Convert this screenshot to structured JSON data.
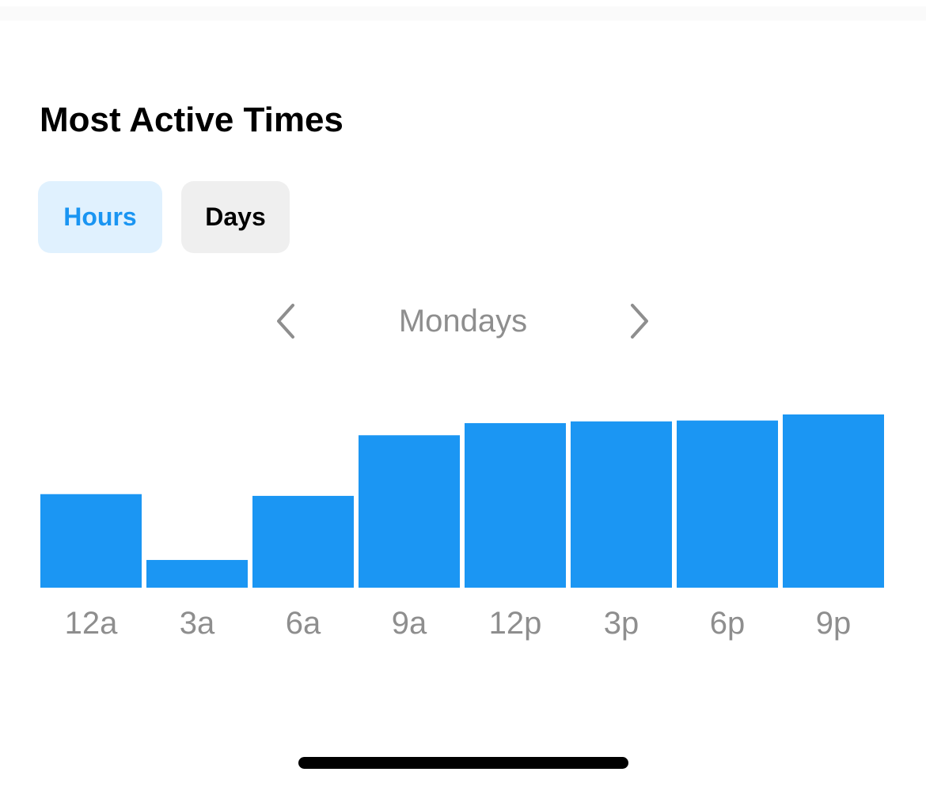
{
  "section": {
    "title": "Most Active Times"
  },
  "segments": {
    "hours_label": "Hours",
    "days_label": "Days",
    "selected": "Hours"
  },
  "navigator": {
    "label": "Mondays",
    "prev_icon": "chevron-left-icon",
    "next_icon": "chevron-right-icon"
  },
  "colors": {
    "accent": "#1a95f2",
    "accent_bg": "#e0f1fe",
    "inactive_bg": "#efefef",
    "muted_text": "#8e8e8e",
    "bar": "#1b96f3"
  },
  "chart_data": {
    "type": "bar",
    "categories": [
      "12a",
      "3a",
      "6a",
      "9a",
      "12p",
      "3p",
      "6p",
      "9p"
    ],
    "values": [
      54,
      16,
      53,
      88,
      95,
      96,
      96.5,
      100
    ],
    "ylim": [
      0,
      100
    ],
    "grid": false
  }
}
